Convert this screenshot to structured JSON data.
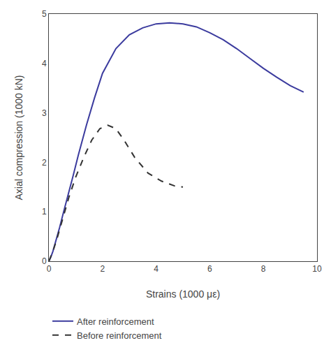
{
  "chart_data": {
    "type": "line",
    "xlabel": "Strains (1000 με)",
    "ylabel": "Axial compression (1000 kN)",
    "xlim": [
      0,
      10
    ],
    "ylim": [
      0,
      5
    ],
    "xticks": [
      0,
      2,
      4,
      6,
      8,
      10
    ],
    "yticks": [
      0,
      1,
      2,
      3,
      4,
      5
    ],
    "grid": false,
    "legend": "bottom",
    "series": [
      {
        "name": "After reinforcement",
        "color": "#3b3b9e",
        "line_style": "solid",
        "x": [
          0,
          0.03,
          0.07,
          0.15,
          0.25,
          0.4,
          0.55,
          0.7,
          0.9,
          1.1,
          1.4,
          1.7,
          2.0,
          2.5,
          3.0,
          3.5,
          4.0,
          4.5,
          5.0,
          5.5,
          6.0,
          6.5,
          7.0,
          7.5,
          8.0,
          8.5,
          9.0,
          9.5
        ],
        "values": [
          0,
          0.03,
          0.08,
          0.2,
          0.38,
          0.68,
          1.0,
          1.3,
          1.72,
          2.15,
          2.75,
          3.3,
          3.8,
          4.3,
          4.58,
          4.72,
          4.8,
          4.82,
          4.8,
          4.74,
          4.62,
          4.48,
          4.3,
          4.1,
          3.9,
          3.72,
          3.55,
          3.42
        ]
      },
      {
        "name": "Before reinforcement",
        "color": "#333333",
        "line_style": "dashed",
        "x": [
          0,
          0.05,
          0.15,
          0.3,
          0.5,
          0.75,
          1.0,
          1.3,
          1.6,
          1.9,
          2.2,
          2.5,
          2.8,
          3.2,
          3.7,
          4.2,
          4.7,
          5.0
        ],
        "values": [
          0,
          0.06,
          0.2,
          0.45,
          0.82,
          1.3,
          1.7,
          2.1,
          2.45,
          2.68,
          2.75,
          2.68,
          2.45,
          2.1,
          1.78,
          1.62,
          1.52,
          1.5
        ]
      }
    ]
  }
}
